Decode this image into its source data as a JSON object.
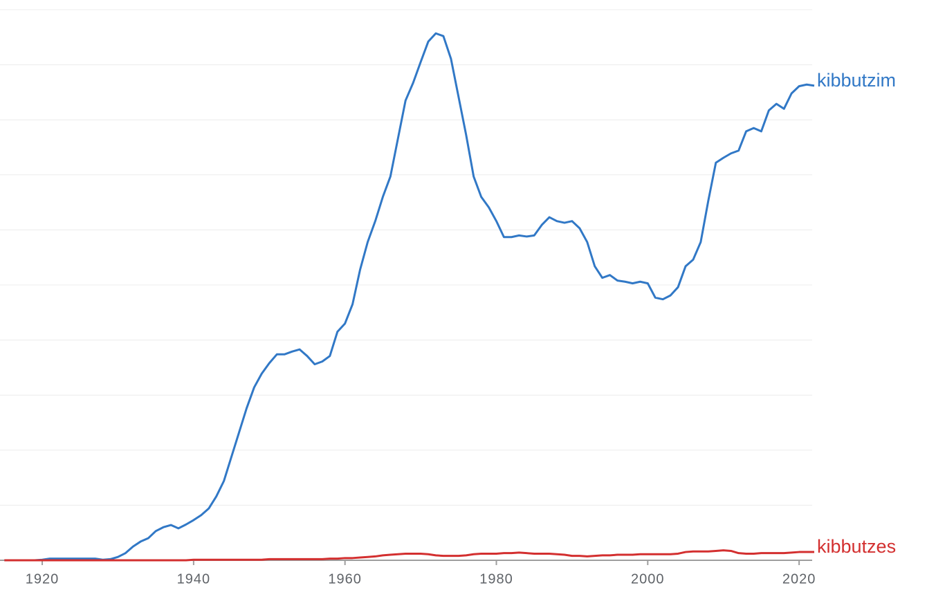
{
  "chart_data": {
    "type": "line",
    "x": [
      1915,
      1916,
      1917,
      1918,
      1919,
      1920,
      1921,
      1922,
      1923,
      1924,
      1925,
      1926,
      1927,
      1928,
      1929,
      1930,
      1931,
      1932,
      1933,
      1934,
      1935,
      1936,
      1937,
      1938,
      1939,
      1940,
      1941,
      1942,
      1943,
      1944,
      1945,
      1946,
      1947,
      1948,
      1949,
      1950,
      1951,
      1952,
      1953,
      1954,
      1955,
      1956,
      1957,
      1958,
      1959,
      1960,
      1961,
      1962,
      1963,
      1964,
      1965,
      1966,
      1967,
      1968,
      1969,
      1970,
      1971,
      1972,
      1973,
      1974,
      1975,
      1976,
      1977,
      1978,
      1979,
      1980,
      1981,
      1982,
      1983,
      1984,
      1985,
      1986,
      1987,
      1988,
      1989,
      1990,
      1991,
      1992,
      1993,
      1994,
      1995,
      1996,
      1997,
      1998,
      1999,
      2000,
      2001,
      2002,
      2003,
      2004,
      2005,
      2006,
      2007,
      2008,
      2009,
      2010,
      2011,
      2012,
      2013,
      2014,
      2015,
      2016,
      2017,
      2018,
      2019,
      2020,
      2021,
      2022
    ],
    "series": [
      {
        "name": "kibbutzim",
        "color": "#3178c6",
        "values": [
          0,
          0,
          0,
          0,
          0,
          0.01,
          0.03,
          0.03,
          0.03,
          0.03,
          0.03,
          0.03,
          0.03,
          0.01,
          0.02,
          0.06,
          0.13,
          0.25,
          0.34,
          0.4,
          0.53,
          0.6,
          0.64,
          0.58,
          0.65,
          0.73,
          0.82,
          0.94,
          1.16,
          1.44,
          1.88,
          2.32,
          2.76,
          3.14,
          3.39,
          3.58,
          3.74,
          3.74,
          3.79,
          3.83,
          3.71,
          3.56,
          3.61,
          3.71,
          4.15,
          4.3,
          4.65,
          5.28,
          5.78,
          6.16,
          6.6,
          6.97,
          7.66,
          8.35,
          8.67,
          9.05,
          9.42,
          9.57,
          9.52,
          9.11,
          8.42,
          7.73,
          6.97,
          6.6,
          6.41,
          6.16,
          5.87,
          5.87,
          5.9,
          5.88,
          5.9,
          6.09,
          6.23,
          6.16,
          6.13,
          6.16,
          6.03,
          5.78,
          5.34,
          5.13,
          5.18,
          5.08,
          5.06,
          5.03,
          5.06,
          5.03,
          4.77,
          4.74,
          4.81,
          4.96,
          5.34,
          5.46,
          5.78,
          6.53,
          7.22,
          7.31,
          7.39,
          7.44,
          7.79,
          7.85,
          7.79,
          8.17,
          8.29,
          8.2,
          8.48,
          8.61,
          8.64,
          8.62
        ]
      },
      {
        "name": "kibbutzes",
        "color": "#d32f2f",
        "values": [
          0,
          0,
          0,
          0,
          0,
          0,
          0,
          0,
          0,
          0,
          0,
          0,
          0,
          0,
          0,
          0,
          0,
          0,
          0,
          0,
          0,
          0,
          0,
          0,
          0,
          0.01,
          0.01,
          0.01,
          0.01,
          0.01,
          0.01,
          0.01,
          0.01,
          0.01,
          0.01,
          0.02,
          0.02,
          0.02,
          0.02,
          0.02,
          0.02,
          0.02,
          0.02,
          0.03,
          0.03,
          0.04,
          0.04,
          0.05,
          0.06,
          0.07,
          0.09,
          0.1,
          0.11,
          0.12,
          0.12,
          0.12,
          0.11,
          0.09,
          0.08,
          0.08,
          0.08,
          0.09,
          0.11,
          0.12,
          0.12,
          0.12,
          0.13,
          0.13,
          0.14,
          0.13,
          0.12,
          0.12,
          0.12,
          0.11,
          0.1,
          0.08,
          0.08,
          0.07,
          0.08,
          0.09,
          0.09,
          0.1,
          0.1,
          0.1,
          0.11,
          0.11,
          0.11,
          0.11,
          0.11,
          0.12,
          0.15,
          0.16,
          0.16,
          0.16,
          0.17,
          0.18,
          0.17,
          0.13,
          0.12,
          0.12,
          0.13,
          0.13,
          0.13,
          0.13,
          0.14,
          0.15,
          0.15,
          0.15
        ]
      }
    ],
    "xlim": [
      1914,
      2022
    ],
    "xticks": [
      1920,
      1940,
      1960,
      1980,
      2000,
      2020
    ],
    "ylim": [
      0,
      10
    ],
    "yticks": [
      0,
      1,
      2,
      3,
      4,
      5,
      6,
      7,
      8,
      9,
      10
    ],
    "grid": true
  }
}
